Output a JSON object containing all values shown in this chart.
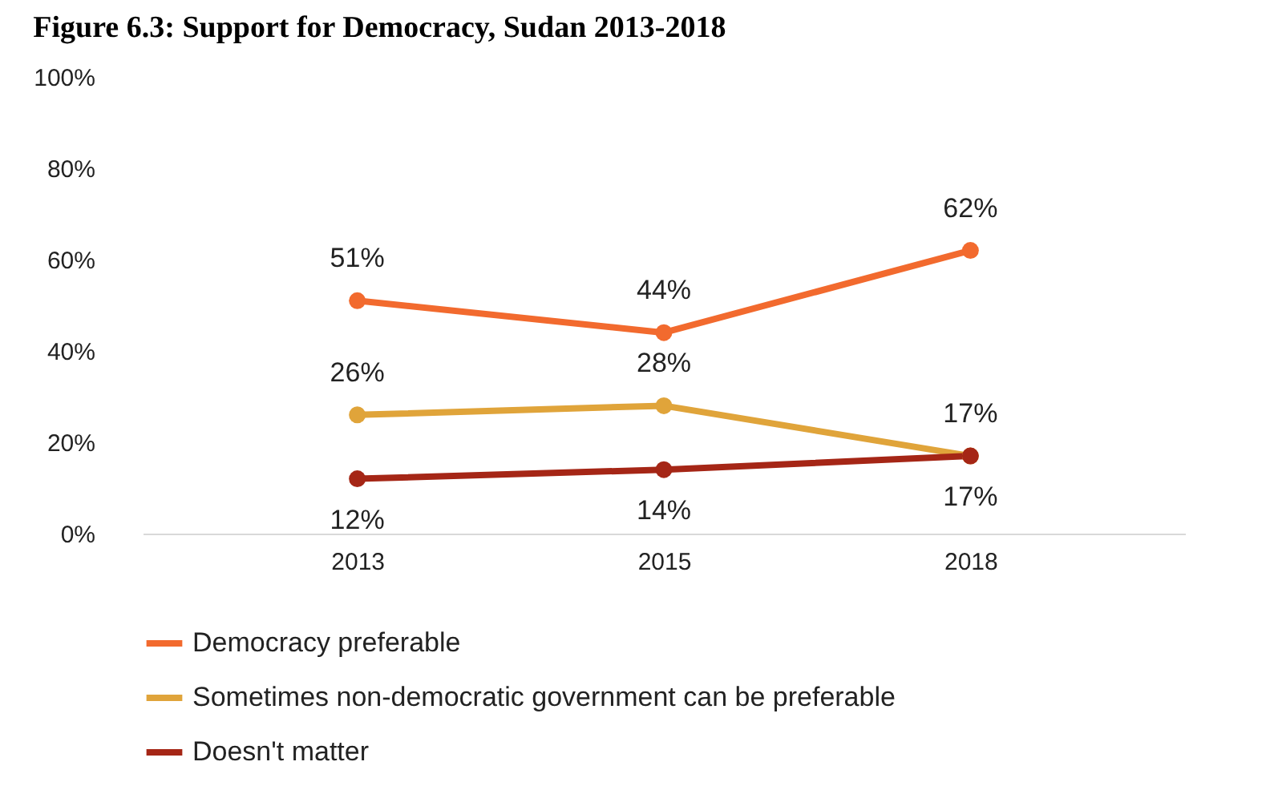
{
  "chart_data": {
    "type": "line",
    "title": "Figure 6.3: Support for Democracy, Sudan 2013-2018",
    "categories": [
      "2013",
      "2015",
      "2018"
    ],
    "series": [
      {
        "name": "Democracy preferable",
        "color": "#f26a2e",
        "values": [
          51,
          44,
          62
        ],
        "value_labels": [
          "51%",
          "44%",
          "62%"
        ]
      },
      {
        "name": "Sometimes non-democratic government can be preferable",
        "color": "#e0a43a",
        "values": [
          26,
          28,
          17
        ],
        "value_labels": [
          "26%",
          "28%",
          "17%"
        ]
      },
      {
        "name": "Doesn't matter",
        "color": "#a52616",
        "values": [
          12,
          14,
          17
        ],
        "value_labels": [
          "12%",
          "14%",
          "17%"
        ]
      }
    ],
    "ylim": [
      0,
      100
    ],
    "yticks": [
      {
        "value": 0,
        "label": "0%"
      },
      {
        "value": 20,
        "label": "20%"
      },
      {
        "value": 40,
        "label": "40%"
      },
      {
        "value": 60,
        "label": "60%"
      },
      {
        "value": 80,
        "label": "80%"
      },
      {
        "value": 100,
        "label": "100%"
      }
    ],
    "grid": false,
    "legend": "bottom",
    "marker": "circle",
    "line_style": "solid"
  }
}
